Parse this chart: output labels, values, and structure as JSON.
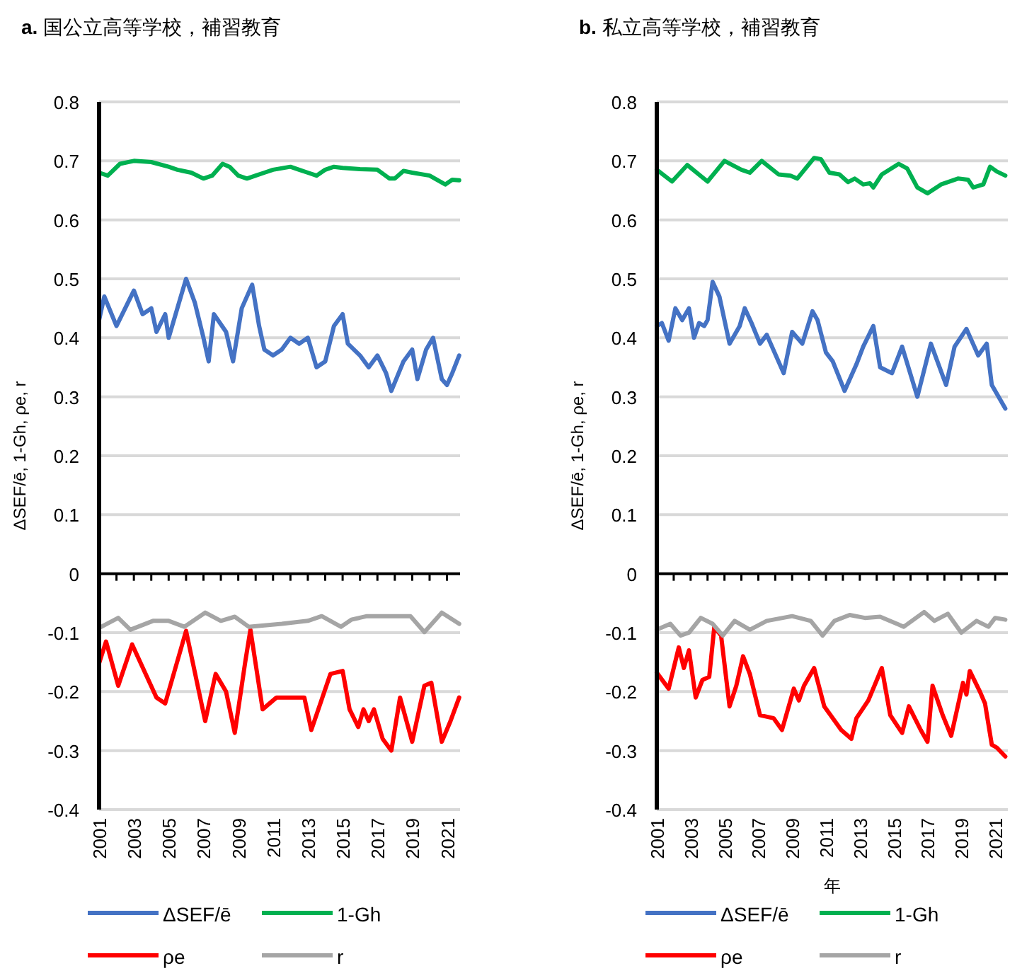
{
  "chart_data": [
    {
      "type": "line",
      "title": "a. 国公立高等学校，補習教育",
      "ylabel": "ΔSEF/ē, 1-Gh, ρe, r",
      "xlim": [
        2001,
        2021.75
      ],
      "ylim": [
        -0.4,
        0.8
      ],
      "xticks": [
        2001,
        {
          "value": 2002,
          "label": null
        },
        2003,
        {
          "value": 2004,
          "label": null
        },
        2005,
        {
          "value": 2006,
          "label": null
        },
        2007,
        {
          "value": 2008,
          "label": null
        },
        2009,
        {
          "value": 2010,
          "label": null
        },
        2011,
        {
          "value": 2012,
          "label": null
        },
        2013,
        {
          "value": 2014,
          "label": null
        },
        2015,
        {
          "value": 2016,
          "label": null
        },
        2017,
        {
          "value": 2018,
          "label": null
        },
        2019,
        {
          "value": 2020,
          "label": null
        },
        2021
      ],
      "yticks": [
        -0.4,
        -0.3,
        -0.2,
        -0.1,
        0,
        0.1,
        0.2,
        0.3,
        0.4,
        0.5,
        0.6,
        0.7,
        0.8
      ],
      "grid": "y",
      "legend": "bottom",
      "series": [
        {
          "name": "ΔSEF/ē",
          "color": "#4472c4",
          "x": [
            2001,
            2001.3,
            2002,
            2003,
            2003.5,
            2004,
            2004.3,
            2004.8,
            2005,
            2005.5,
            2006,
            2006.5,
            2007,
            2007.3,
            2007.6,
            2008.3,
            2008.7,
            2009.2,
            2009.8,
            2010.2,
            2010.5,
            2011,
            2011.5,
            2012,
            2012.5,
            2013,
            2013.5,
            2014,
            2014.5,
            2015,
            2015.3,
            2016,
            2016.5,
            2017,
            2017.5,
            2017.8,
            2018.5,
            2019,
            2019.3,
            2019.8,
            2020.2,
            2020.7,
            2021,
            2021.3,
            2021.7
          ],
          "values": [
            0.43,
            0.47,
            0.42,
            0.48,
            0.44,
            0.45,
            0.41,
            0.44,
            0.4,
            0.45,
            0.5,
            0.46,
            0.4,
            0.36,
            0.44,
            0.41,
            0.36,
            0.45,
            0.49,
            0.42,
            0.38,
            0.37,
            0.38,
            0.4,
            0.39,
            0.4,
            0.35,
            0.36,
            0.42,
            0.44,
            0.39,
            0.37,
            0.35,
            0.37,
            0.34,
            0.31,
            0.36,
            0.38,
            0.33,
            0.38,
            0.4,
            0.33,
            0.32,
            0.34,
            0.37
          ]
        },
        {
          "name": "1-Gh",
          "color": "#00b050",
          "x": [
            2001,
            2001.5,
            2002.2,
            2003,
            2004,
            2005,
            2005.5,
            2006.3,
            2007,
            2007.5,
            2008.1,
            2008.5,
            2009,
            2009.5,
            2010,
            2010.5,
            2011,
            2012,
            2012.5,
            2013,
            2013.5,
            2014,
            2014.5,
            2015,
            2016,
            2017,
            2017.7,
            2018,
            2018.5,
            2019,
            2020,
            2020.9,
            2021.3,
            2021.7
          ],
          "values": [
            0.68,
            0.675,
            0.695,
            0.7,
            0.698,
            0.69,
            0.685,
            0.68,
            0.67,
            0.675,
            0.695,
            0.69,
            0.675,
            0.67,
            0.675,
            0.68,
            0.685,
            0.69,
            0.685,
            0.68,
            0.675,
            0.685,
            0.69,
            0.688,
            0.686,
            0.685,
            0.67,
            0.67,
            0.683,
            0.68,
            0.675,
            0.66,
            0.668,
            0.667
          ]
        },
        {
          "name": "ρe",
          "color": "#ff0000",
          "x": [
            2001,
            2001.4,
            2002.1,
            2002.9,
            2004.3,
            2004.8,
            2006,
            2007.1,
            2007.7,
            2008.3,
            2008.8,
            2009.4,
            2009.7,
            2010.4,
            2011.2,
            2012.8,
            2013.2,
            2014.3,
            2015,
            2015.4,
            2015.9,
            2016.2,
            2016.5,
            2016.8,
            2017.3,
            2017.8,
            2018.3,
            2019,
            2019.7,
            2020.1,
            2020.7,
            2021.2,
            2021.7
          ],
          "values": [
            -0.152,
            -0.115,
            -0.19,
            -0.12,
            -0.21,
            -0.22,
            -0.097,
            -0.25,
            -0.17,
            -0.2,
            -0.27,
            -0.15,
            -0.095,
            -0.23,
            -0.21,
            -0.21,
            -0.265,
            -0.17,
            -0.165,
            -0.23,
            -0.26,
            -0.23,
            -0.25,
            -0.23,
            -0.28,
            -0.3,
            -0.21,
            -0.285,
            -0.19,
            -0.185,
            -0.285,
            -0.25,
            -0.21
          ]
        },
        {
          "name": "r",
          "color": "#a5a5a5",
          "x": [
            2001,
            2002.1,
            2002.8,
            2004.1,
            2005,
            2005.9,
            2007.1,
            2008,
            2008.8,
            2009.6,
            2011.5,
            2013,
            2013.8,
            2014.9,
            2015.5,
            2016.4,
            2017.7,
            2018.9,
            2019.7,
            2020.7,
            2021.7
          ],
          "values": [
            -0.092,
            -0.075,
            -0.095,
            -0.08,
            -0.08,
            -0.09,
            -0.066,
            -0.08,
            -0.073,
            -0.09,
            -0.085,
            -0.08,
            -0.072,
            -0.09,
            -0.078,
            -0.072,
            -0.072,
            -0.072,
            -0.099,
            -0.066,
            -0.085
          ]
        }
      ]
    },
    {
      "type": "line",
      "title": "b. 私立高等学校，補習教育",
      "xlabel": "年",
      "ylabel": "ΔSEF/ē, 1-Gh, ρe, r",
      "xlim": [
        2001,
        2021.75
      ],
      "ylim": [
        -0.4,
        0.8
      ],
      "xticks": [
        2001,
        {
          "value": 2002,
          "label": null
        },
        2003,
        {
          "value": 2004,
          "label": null
        },
        2005,
        {
          "value": 2006,
          "label": null
        },
        2007,
        {
          "value": 2008,
          "label": null
        },
        2009,
        {
          "value": 2010,
          "label": null
        },
        2011,
        {
          "value": 2012,
          "label": null
        },
        2013,
        {
          "value": 2014,
          "label": null
        },
        2015,
        {
          "value": 2016,
          "label": null
        },
        2017,
        {
          "value": 2018,
          "label": null
        },
        2019,
        {
          "value": 2020,
          "label": null
        },
        2021
      ],
      "yticks": [
        -0.4,
        -0.3,
        -0.2,
        -0.1,
        0,
        0.1,
        0.2,
        0.3,
        0.4,
        0.5,
        0.6,
        0.7,
        0.8
      ],
      "grid": "y",
      "legend": "bottom",
      "series": [
        {
          "name": "ΔSEF/ē",
          "color": "#4472c4",
          "x": [
            2001,
            2001.3,
            2001.7,
            2002.1,
            2002.5,
            2002.9,
            2003.2,
            2003.5,
            2003.8,
            2004,
            2004.3,
            2004.7,
            2005.3,
            2005.9,
            2006.2,
            2006.6,
            2007.1,
            2007.5,
            2008.5,
            2009,
            2009.6,
            2010.2,
            2010.5,
            2011,
            2011.4,
            2012.1,
            2012.8,
            2013.2,
            2013.8,
            2014.2,
            2014.9,
            2015.5,
            2016.4,
            2017.2,
            2018.1,
            2018.6,
            2019.3,
            2020,
            2020.5,
            2020.8,
            2021.6
          ],
          "values": [
            0.42,
            0.425,
            0.395,
            0.45,
            0.43,
            0.45,
            0.4,
            0.425,
            0.42,
            0.43,
            0.495,
            0.47,
            0.39,
            0.42,
            0.45,
            0.425,
            0.39,
            0.405,
            0.34,
            0.41,
            0.39,
            0.445,
            0.43,
            0.375,
            0.36,
            0.31,
            0.355,
            0.385,
            0.42,
            0.35,
            0.34,
            0.385,
            0.3,
            0.39,
            0.32,
            0.385,
            0.415,
            0.37,
            0.39,
            0.32,
            0.28
          ]
        },
        {
          "name": "1-Gh",
          "color": "#00b050",
          "x": [
            2001,
            2001.9,
            2002.8,
            2004,
            2005,
            2006,
            2006.5,
            2007.2,
            2008.2,
            2008.9,
            2009.3,
            2010.3,
            2010.7,
            2011.2,
            2011.8,
            2012.3,
            2012.7,
            2013.2,
            2013.6,
            2013.8,
            2014.3,
            2015.3,
            2015.8,
            2016.4,
            2017,
            2017.8,
            2018.8,
            2019.4,
            2019.7,
            2020.3,
            2020.7,
            2021.1,
            2021.6
          ],
          "values": [
            0.685,
            0.665,
            0.693,
            0.665,
            0.7,
            0.685,
            0.68,
            0.7,
            0.677,
            0.675,
            0.67,
            0.705,
            0.703,
            0.68,
            0.677,
            0.664,
            0.67,
            0.66,
            0.662,
            0.655,
            0.677,
            0.695,
            0.687,
            0.655,
            0.645,
            0.66,
            0.67,
            0.668,
            0.655,
            0.66,
            0.69,
            0.682,
            0.675
          ]
        },
        {
          "name": "ρe",
          "color": "#ff0000",
          "x": [
            2001,
            2001.7,
            2002.3,
            2002.6,
            2002.9,
            2003.3,
            2003.7,
            2004.1,
            2004.4,
            2004.8,
            2005.3,
            2005.7,
            2006.1,
            2006.5,
            2007.1,
            2007.9,
            2008.4,
            2009.1,
            2009.4,
            2009.7,
            2010.3,
            2010.9,
            2011.9,
            2012.5,
            2012.8,
            2013.5,
            2014.3,
            2014.8,
            2015.5,
            2015.9,
            2016.6,
            2017,
            2017.3,
            2017.9,
            2018.4,
            2019.1,
            2019.3,
            2019.5,
            2020.1,
            2020.4,
            2020.8,
            2021.1,
            2021.6
          ],
          "values": [
            -0.168,
            -0.195,
            -0.125,
            -0.16,
            -0.13,
            -0.21,
            -0.18,
            -0.175,
            -0.09,
            -0.105,
            -0.225,
            -0.19,
            -0.14,
            -0.17,
            -0.24,
            -0.245,
            -0.265,
            -0.195,
            -0.215,
            -0.19,
            -0.16,
            -0.225,
            -0.265,
            -0.28,
            -0.245,
            -0.215,
            -0.16,
            -0.24,
            -0.27,
            -0.225,
            -0.265,
            -0.285,
            -0.19,
            -0.24,
            -0.275,
            -0.185,
            -0.205,
            -0.165,
            -0.2,
            -0.22,
            -0.29,
            -0.295,
            -0.31
          ]
        },
        {
          "name": "r",
          "color": "#a5a5a5",
          "x": [
            2001,
            2001.8,
            2002.4,
            2002.9,
            2003.6,
            2004.3,
            2004.9,
            2005.6,
            2006.5,
            2007.5,
            2009,
            2010.1,
            2010.8,
            2011.5,
            2012.4,
            2013.3,
            2014.2,
            2015.6,
            2016.8,
            2017.4,
            2018.2,
            2019,
            2019.9,
            2020.6,
            2021,
            2021.6
          ],
          "values": [
            -0.095,
            -0.085,
            -0.105,
            -0.1,
            -0.075,
            -0.085,
            -0.105,
            -0.08,
            -0.095,
            -0.08,
            -0.072,
            -0.08,
            -0.105,
            -0.08,
            -0.07,
            -0.075,
            -0.073,
            -0.09,
            -0.065,
            -0.08,
            -0.068,
            -0.1,
            -0.08,
            -0.09,
            -0.075,
            -0.078
          ]
        }
      ]
    }
  ]
}
